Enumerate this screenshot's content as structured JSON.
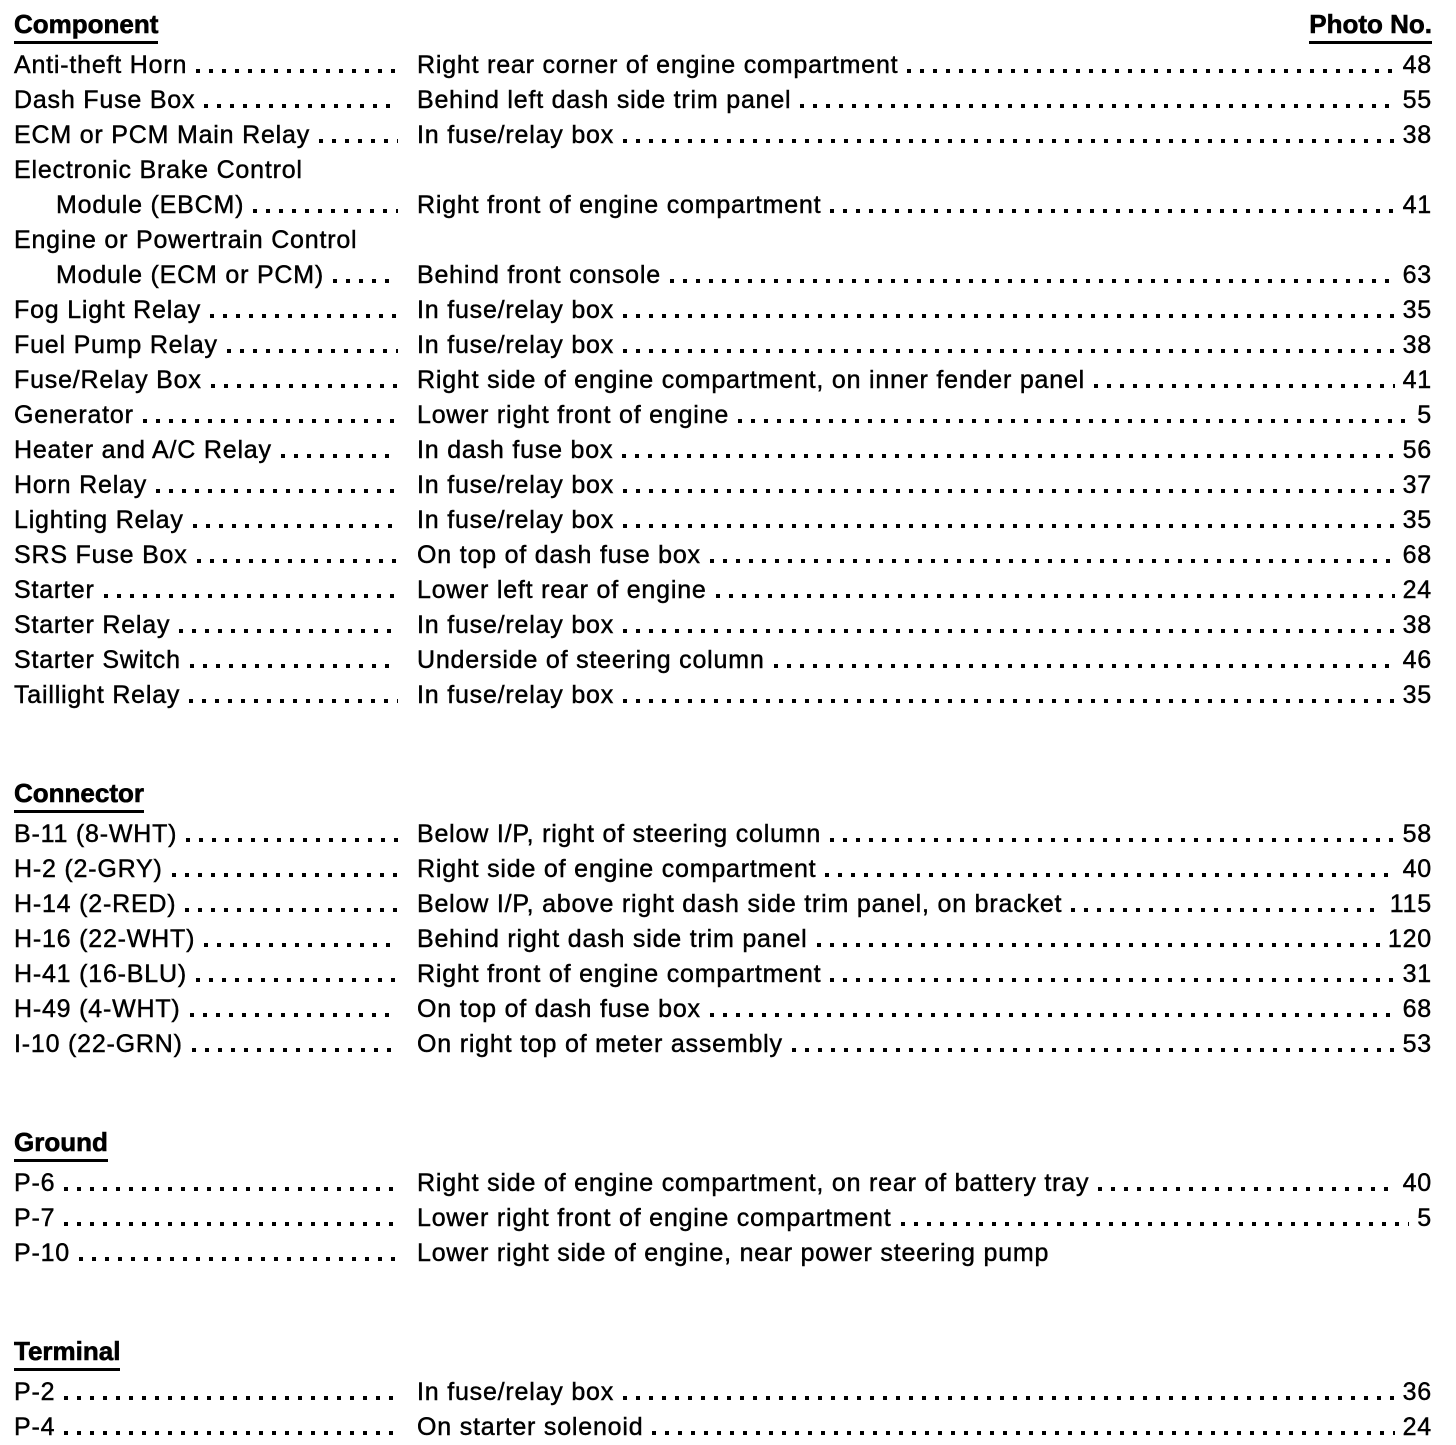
{
  "sections": [
    {
      "title": "Component",
      "photo_header": "Photo No.",
      "rows": [
        {
          "name_lines": [
            "Anti-theft Horn"
          ],
          "location": "Right rear corner of engine compartment",
          "photo": "48"
        },
        {
          "name_lines": [
            "Dash Fuse Box"
          ],
          "location": "Behind left dash side trim panel",
          "photo": "55"
        },
        {
          "name_lines": [
            "ECM or PCM Main Relay"
          ],
          "location": "In fuse/relay box",
          "photo": "38"
        },
        {
          "name_lines": [
            "Electronic Brake Control",
            "Module (EBCM)"
          ],
          "location": "Right front of engine compartment",
          "photo": "41"
        },
        {
          "name_lines": [
            "Engine or Powertrain Control",
            "Module (ECM or PCM)"
          ],
          "location": "Behind front console",
          "photo": "63"
        },
        {
          "name_lines": [
            "Fog Light Relay"
          ],
          "location": "In fuse/relay box",
          "photo": "35"
        },
        {
          "name_lines": [
            "Fuel Pump Relay"
          ],
          "location": "In fuse/relay box",
          "photo": "38"
        },
        {
          "name_lines": [
            "Fuse/Relay Box"
          ],
          "location": "Right side of engine compartment, on inner fender panel",
          "photo": "41"
        },
        {
          "name_lines": [
            "Generator"
          ],
          "location": "Lower right front of engine",
          "photo": "5"
        },
        {
          "name_lines": [
            "Heater and A/C Relay"
          ],
          "location": "In dash fuse box",
          "photo": "56"
        },
        {
          "name_lines": [
            "Horn Relay"
          ],
          "location": "In fuse/relay box",
          "photo": "37"
        },
        {
          "name_lines": [
            "Lighting Relay"
          ],
          "location": "In fuse/relay box",
          "photo": "35"
        },
        {
          "name_lines": [
            "SRS Fuse Box"
          ],
          "location": "On top of dash fuse box",
          "photo": "68"
        },
        {
          "name_lines": [
            "Starter"
          ],
          "location": "Lower left rear of engine",
          "photo": "24"
        },
        {
          "name_lines": [
            "Starter Relay"
          ],
          "location": "In fuse/relay box",
          "photo": "38"
        },
        {
          "name_lines": [
            "Starter Switch"
          ],
          "location": "Underside of steering column",
          "photo": "46"
        },
        {
          "name_lines": [
            "Taillight Relay"
          ],
          "location": "In fuse/relay box",
          "photo": "35"
        }
      ]
    },
    {
      "title": "Connector",
      "rows": [
        {
          "name_lines": [
            "B-11 (8-WHT)"
          ],
          "location": "Below I/P, right of steering column",
          "photo": "58"
        },
        {
          "name_lines": [
            "H-2 (2-GRY)"
          ],
          "location": "Right side of engine compartment",
          "photo": "40"
        },
        {
          "name_lines": [
            "H-14 (2-RED)"
          ],
          "location": "Below I/P, above right dash side trim panel, on bracket",
          "photo": "115"
        },
        {
          "name_lines": [
            "H-16 (22-WHT)"
          ],
          "location": "Behind right dash side trim panel",
          "photo": "120"
        },
        {
          "name_lines": [
            "H-41 (16-BLU)"
          ],
          "location": "Right front of engine compartment",
          "photo": "31"
        },
        {
          "name_lines": [
            "H-49 (4-WHT)"
          ],
          "location": "On top of dash fuse box",
          "photo": "68"
        },
        {
          "name_lines": [
            "I-10 (22-GRN)"
          ],
          "location": "On right top of meter assembly",
          "photo": "53"
        }
      ]
    },
    {
      "title": "Ground",
      "rows": [
        {
          "name_lines": [
            "P-6"
          ],
          "location": "Right side of engine compartment, on rear of battery tray",
          "photo": "40"
        },
        {
          "name_lines": [
            "P-7"
          ],
          "location": "Lower right front of engine compartment",
          "photo": "5"
        },
        {
          "name_lines": [
            "P-10"
          ],
          "location": "Lower right side of engine, near power steering pump",
          "photo": ""
        }
      ]
    },
    {
      "title": "Terminal",
      "rows": [
        {
          "name_lines": [
            "P-2"
          ],
          "location": "In fuse/relay box",
          "photo": "36"
        },
        {
          "name_lines": [
            "P-4"
          ],
          "location": "On starter solenoid",
          "photo": "24"
        }
      ]
    }
  ]
}
